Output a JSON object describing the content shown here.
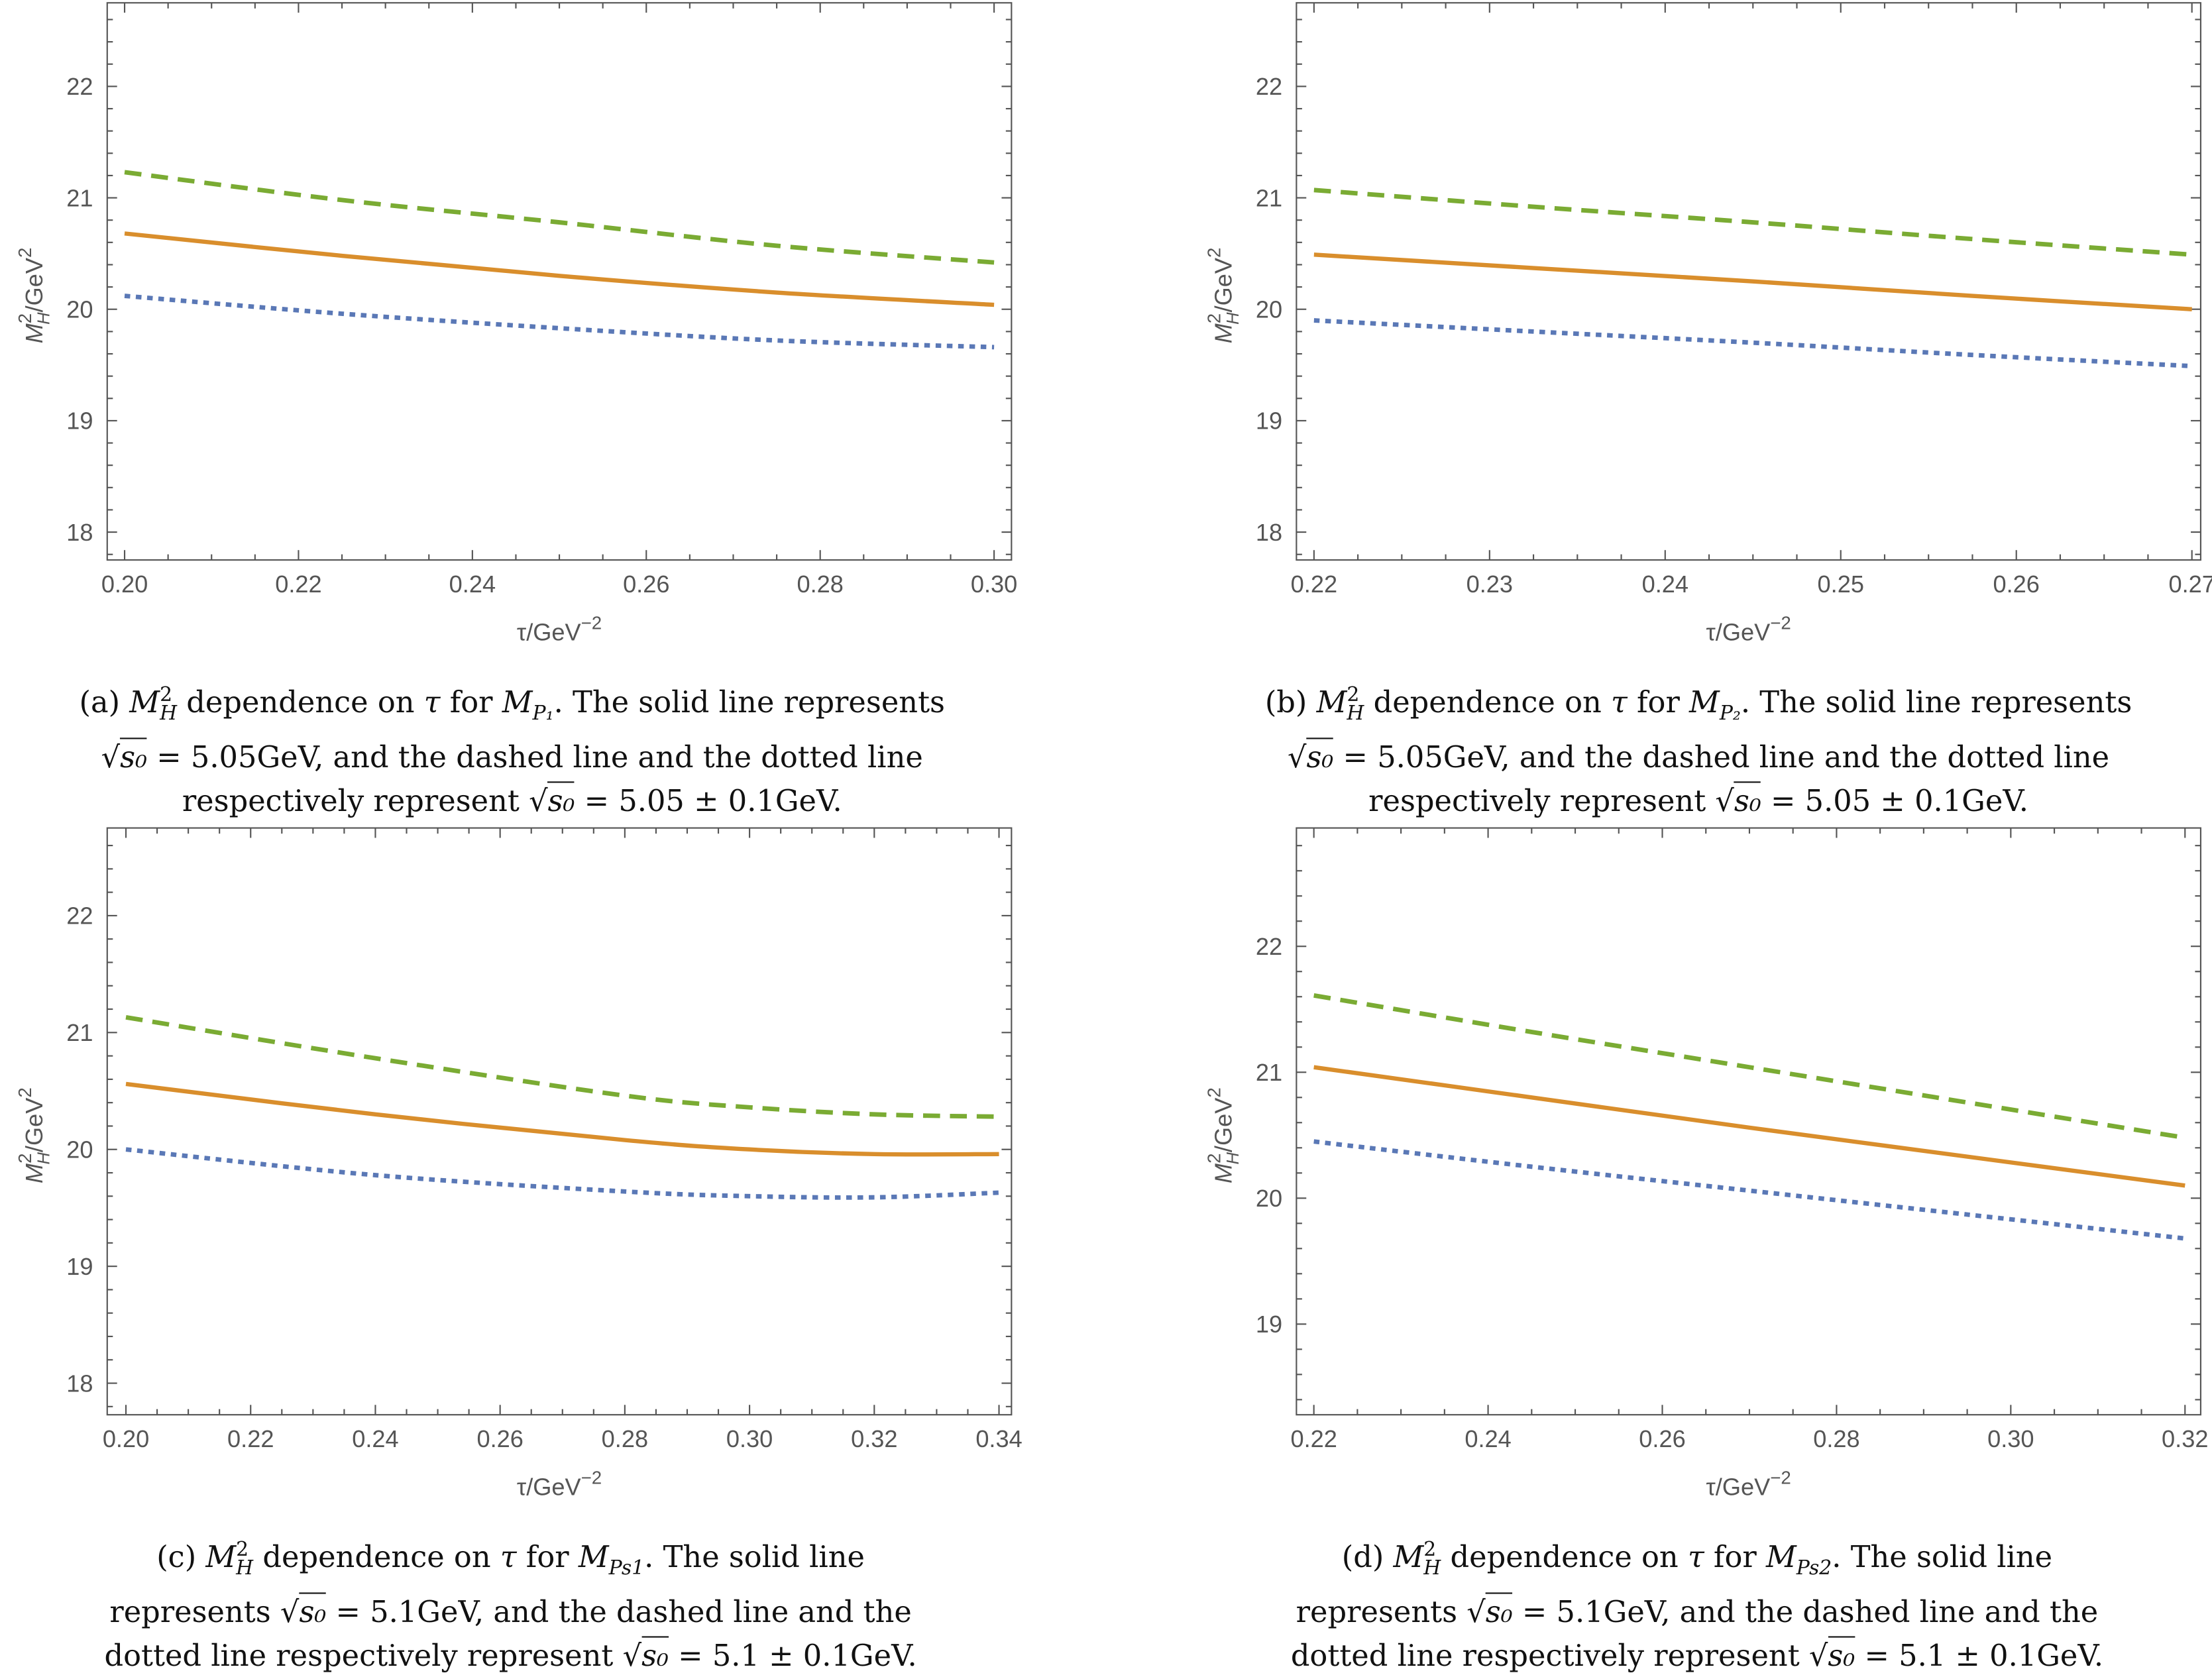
{
  "colors": {
    "dashed": "#7aab33",
    "solid": "#d98e2c",
    "dotted": "#5a78b6",
    "frame": "#555555"
  },
  "chart_data": [
    {
      "id": "a",
      "type": "line",
      "xlabel": "τ/GeV",
      "xlabel_sup": "−2",
      "ylabel": "M",
      "ylabel_sub": "H",
      "ylabel_sup": "2",
      "ylabel_rest": "/GeV",
      "ylabel_rest_sup": "2",
      "xlim": [
        0.198,
        0.302
      ],
      "ylim": [
        17.75,
        22.75
      ],
      "xticks": [
        "0.20",
        "0.22",
        "0.24",
        "0.26",
        "0.28",
        "0.30"
      ],
      "xminor": 0.005,
      "yticks": [
        "18",
        "19",
        "20",
        "21",
        "22"
      ],
      "yminor": 0.2,
      "x": [
        0.2,
        0.225,
        0.25,
        0.275,
        0.3
      ],
      "series": [
        {
          "style": "dashed",
          "values": [
            21.23,
            20.98,
            20.78,
            20.57,
            20.42
          ]
        },
        {
          "style": "solid",
          "values": [
            20.68,
            20.48,
            20.3,
            20.15,
            20.04
          ]
        },
        {
          "style": "dotted",
          "values": [
            20.12,
            19.96,
            19.83,
            19.72,
            19.66
          ]
        }
      ]
    },
    {
      "id": "b",
      "type": "line",
      "xlabel": "τ/GeV",
      "xlabel_sup": "−2",
      "ylabel": "M",
      "ylabel_sub": "H",
      "ylabel_sup": "2",
      "ylabel_rest": "/GeV",
      "ylabel_rest_sup": "2",
      "xlim": [
        0.219,
        0.2705
      ],
      "ylim": [
        17.75,
        22.75
      ],
      "xticks": [
        "0.22",
        "0.23",
        "0.24",
        "0.25",
        "0.26",
        "0.27"
      ],
      "xminor": 0.0025,
      "yticks": [
        "18",
        "19",
        "20",
        "21",
        "22"
      ],
      "yminor": 0.2,
      "x": [
        0.22,
        0.2325,
        0.245,
        0.2575,
        0.27
      ],
      "series": [
        {
          "style": "dashed",
          "values": [
            21.07,
            20.92,
            20.78,
            20.63,
            20.49
          ]
        },
        {
          "style": "solid",
          "values": [
            20.49,
            20.37,
            20.25,
            20.12,
            20.0
          ]
        },
        {
          "style": "dotted",
          "values": [
            19.9,
            19.8,
            19.7,
            19.59,
            19.49
          ]
        }
      ]
    },
    {
      "id": "c",
      "type": "line",
      "xlabel": "τ/GeV",
      "xlabel_sup": "−2",
      "ylabel": "M",
      "ylabel_sub": "H",
      "ylabel_sup": "2",
      "ylabel_rest": "/GeV",
      "ylabel_rest_sup": "2",
      "xlim": [
        0.197,
        0.342
      ],
      "ylim": [
        17.73,
        22.75
      ],
      "xticks": [
        "0.20",
        "0.22",
        "0.24",
        "0.26",
        "0.28",
        "0.30",
        "0.32",
        "0.34"
      ],
      "xminor": 0.005,
      "yticks": [
        "18",
        "19",
        "20",
        "21",
        "22"
      ],
      "yminor": 0.2,
      "x": [
        0.2,
        0.24,
        0.28,
        0.3,
        0.32,
        0.34
      ],
      "series": [
        {
          "style": "dashed",
          "values": [
            21.13,
            20.78,
            20.46,
            20.36,
            20.3,
            20.28
          ]
        },
        {
          "style": "solid",
          "values": [
            20.56,
            20.3,
            20.08,
            20.0,
            19.96,
            19.96
          ]
        },
        {
          "style": "dotted",
          "values": [
            20.0,
            19.78,
            19.64,
            19.6,
            19.59,
            19.63
          ]
        }
      ]
    },
    {
      "id": "d",
      "type": "line",
      "xlabel": "τ/GeV",
      "xlabel_sup": "−2",
      "ylabel": "M",
      "ylabel_sub": "H",
      "ylabel_sup": "2",
      "ylabel_rest": "/GeV",
      "ylabel_rest_sup": "2",
      "xlim": [
        0.218,
        0.3218
      ],
      "ylim": [
        18.28,
        22.94
      ],
      "xticks": [
        "0.22",
        "0.24",
        "0.26",
        "0.28",
        "0.30",
        "0.32"
      ],
      "xminor": 0.005,
      "yticks": [
        "19",
        "20",
        "21",
        "22"
      ],
      "yminor": 0.2,
      "x": [
        0.22,
        0.245,
        0.27,
        0.295,
        0.32
      ],
      "series": [
        {
          "style": "dashed",
          "values": [
            21.61,
            21.32,
            21.04,
            20.76,
            20.48
          ]
        },
        {
          "style": "solid",
          "values": [
            21.04,
            20.8,
            20.56,
            20.33,
            20.1
          ]
        },
        {
          "style": "dotted",
          "values": [
            20.45,
            20.25,
            20.06,
            19.87,
            19.68
          ]
        }
      ]
    }
  ],
  "captions": [
    [
      [
        [
          "t",
          "(a) "
        ],
        [
          "m",
          "M"
        ],
        [
          "sup",
          "2"
        ],
        [
          "sub",
          "H"
        ],
        [
          "t",
          " dependence on "
        ],
        [
          "m",
          "τ"
        ],
        [
          "t",
          " for "
        ],
        [
          "m",
          "M"
        ],
        [
          "sub",
          "P₁"
        ],
        [
          "t",
          ". The solid line represents"
        ]
      ],
      [
        [
          "t",
          "√"
        ],
        [
          "sq",
          "s₀"
        ],
        [
          "t",
          " = 5.05GeV, and the dashed line and the dotted line"
        ]
      ],
      [
        [
          "t",
          "respectively represent "
        ],
        [
          "t",
          "√"
        ],
        [
          "sq",
          "s₀"
        ],
        [
          "t",
          " = 5.05 ± 0.1GeV."
        ]
      ]
    ],
    [
      [
        [
          "t",
          "(b) "
        ],
        [
          "m",
          "M"
        ],
        [
          "sup",
          "2"
        ],
        [
          "sub",
          "H"
        ],
        [
          "t",
          " dependence on "
        ],
        [
          "m",
          "τ"
        ],
        [
          "t",
          " for "
        ],
        [
          "m",
          "M"
        ],
        [
          "sub",
          "P₂"
        ],
        [
          "t",
          ". The solid line represents"
        ]
      ],
      [
        [
          "t",
          "√"
        ],
        [
          "sq",
          "s₀"
        ],
        [
          "t",
          " = 5.05GeV, and the dashed line and the dotted line"
        ]
      ],
      [
        [
          "t",
          "respectively represent "
        ],
        [
          "t",
          "√"
        ],
        [
          "sq",
          "s₀"
        ],
        [
          "t",
          " = 5.05 ± 0.1GeV."
        ]
      ]
    ],
    [
      [
        [
          "t",
          "(c) "
        ],
        [
          "m",
          "M"
        ],
        [
          "sup",
          "2"
        ],
        [
          "sub",
          "H"
        ],
        [
          "t",
          " dependence on "
        ],
        [
          "m",
          "τ"
        ],
        [
          "t",
          " for "
        ],
        [
          "m",
          "M"
        ],
        [
          "sub",
          "Ps1"
        ],
        [
          "t",
          ". The solid line"
        ]
      ],
      [
        [
          "t",
          "represents "
        ],
        [
          "t",
          "√"
        ],
        [
          "sq",
          "s₀"
        ],
        [
          "t",
          " = 5.1GeV, and the dashed line and the"
        ]
      ],
      [
        [
          "t",
          "dotted line respectively represent "
        ],
        [
          "t",
          "√"
        ],
        [
          "sq",
          "s₀"
        ],
        [
          "t",
          " = 5.1 ± 0.1GeV."
        ]
      ]
    ],
    [
      [
        [
          "t",
          "(d) "
        ],
        [
          "m",
          "M"
        ],
        [
          "sup",
          "2"
        ],
        [
          "sub",
          "H"
        ],
        [
          "t",
          " dependence on "
        ],
        [
          "m",
          "τ"
        ],
        [
          "t",
          " for "
        ],
        [
          "m",
          "M"
        ],
        [
          "sub",
          "Ps2"
        ],
        [
          "t",
          ". The solid line"
        ]
      ],
      [
        [
          "t",
          "represents "
        ],
        [
          "t",
          "√"
        ],
        [
          "sq",
          "s₀"
        ],
        [
          "t",
          " = 5.1GeV, and the dashed line and the"
        ]
      ],
      [
        [
          "t",
          "dotted line respectively represent "
        ],
        [
          "t",
          "√"
        ],
        [
          "sq",
          "s₀"
        ],
        [
          "t",
          " = 5.1 ± 0.1GeV."
        ]
      ]
    ]
  ]
}
